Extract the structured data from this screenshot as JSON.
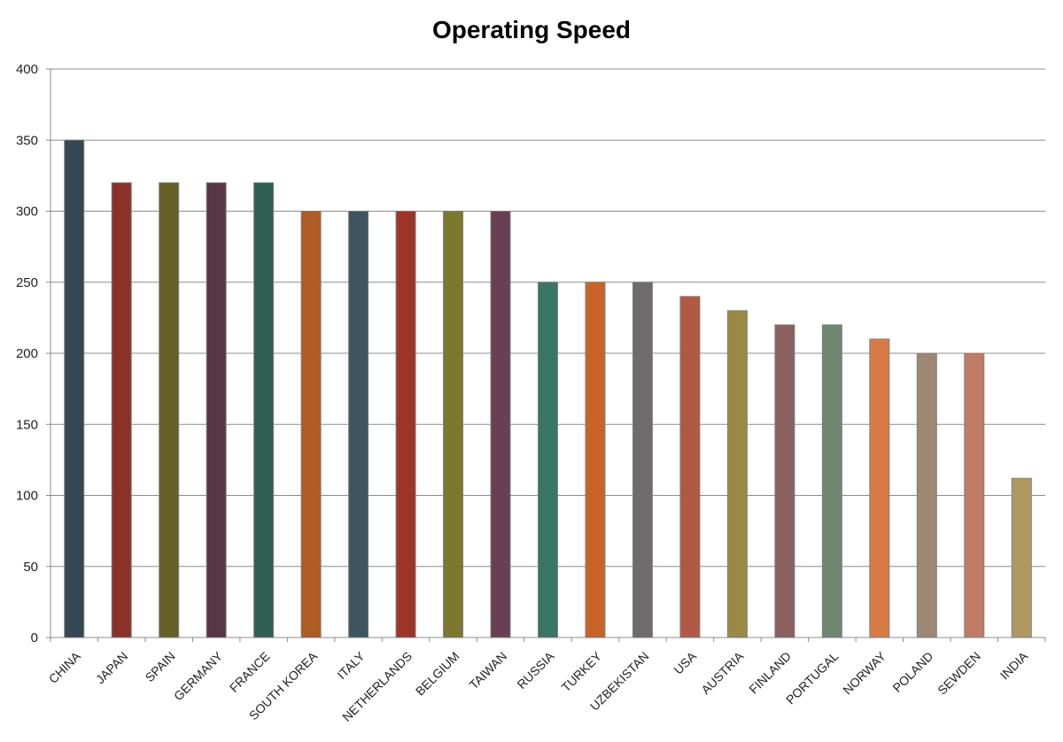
{
  "chart_data": {
    "type": "bar",
    "title": "Operating Speed",
    "xlabel": "",
    "ylabel": "",
    "ylim": [
      0,
      400
    ],
    "yticks": [
      0,
      50,
      100,
      150,
      200,
      250,
      300,
      350,
      400
    ],
    "grid": true,
    "legend": "none",
    "categories": [
      "CHINA",
      "JAPAN",
      "SPAIN",
      "GERMANY",
      "FRANCE",
      "SOUTH KOREA",
      "ITALY",
      "NETHERLANDS",
      "BELGIUM",
      "TAIWAN",
      "RUSSIA",
      "TURKEY",
      "UZBEKISTAN",
      "USA",
      "AUSTRIA",
      "FINLAND",
      "PORTUGAL",
      "NORWAY",
      "POLAND",
      "SEWDEN",
      "INDIA"
    ],
    "values": [
      350,
      320,
      320,
      320,
      320,
      300,
      300,
      300,
      300,
      300,
      250,
      250,
      250,
      240,
      230,
      220,
      220,
      210,
      200,
      200,
      112
    ],
    "colors": [
      "#364653",
      "#8a3129",
      "#666126",
      "#573646",
      "#2f5e53",
      "#b05a24",
      "#3e5461",
      "#9c3528",
      "#7d772f",
      "#683f53",
      "#3b7566",
      "#c8642a",
      "#6e6b6c",
      "#b05a45",
      "#9a8a45",
      "#8a6060",
      "#6e8670",
      "#d77a45",
      "#9e8773",
      "#c07c64",
      "#b09860"
    ]
  }
}
